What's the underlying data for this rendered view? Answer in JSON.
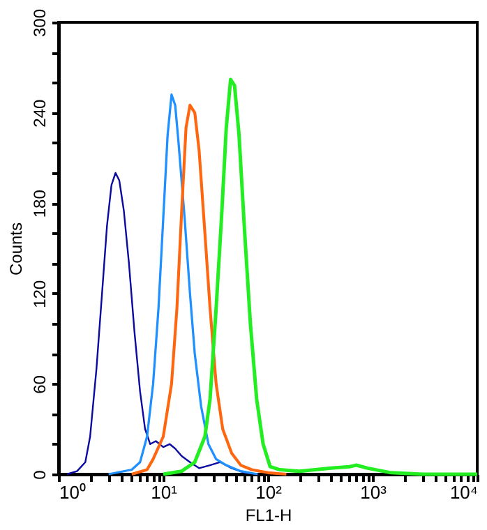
{
  "chart_data": {
    "type": "line",
    "xlabel": "FL1-H",
    "ylabel": "Counts",
    "log": "x",
    "grid": false,
    "legend": false,
    "marker": "none",
    "line_style": "solid",
    "xlim": [
      1,
      10000
    ],
    "ylim": [
      0,
      300
    ],
    "xticks": [
      {
        "value": 1,
        "label": "10⁰"
      },
      {
        "value": 2,
        "label": null
      },
      {
        "value": 3,
        "label": null
      },
      {
        "value": 4,
        "label": null
      },
      {
        "value": 5,
        "label": null
      },
      {
        "value": 6,
        "label": null
      },
      {
        "value": 7,
        "label": null
      },
      {
        "value": 8,
        "label": null
      },
      {
        "value": 9,
        "label": null
      },
      {
        "value": 10,
        "label": "10¹"
      },
      {
        "value": 20,
        "label": null
      },
      {
        "value": 30,
        "label": null
      },
      {
        "value": 40,
        "label": null
      },
      {
        "value": 50,
        "label": null
      },
      {
        "value": 60,
        "label": null
      },
      {
        "value": 70,
        "label": null
      },
      {
        "value": 80,
        "label": null
      },
      {
        "value": 90,
        "label": null
      },
      {
        "value": 100,
        "label": "10²"
      },
      {
        "value": 200,
        "label": null
      },
      {
        "value": 300,
        "label": null
      },
      {
        "value": 400,
        "label": null
      },
      {
        "value": 500,
        "label": null
      },
      {
        "value": 600,
        "label": null
      },
      {
        "value": 700,
        "label": null
      },
      {
        "value": 800,
        "label": null
      },
      {
        "value": 900,
        "label": null
      },
      {
        "value": 1000,
        "label": "10³"
      },
      {
        "value": 2000,
        "label": null
      },
      {
        "value": 3000,
        "label": null
      },
      {
        "value": 4000,
        "label": null
      },
      {
        "value": 5000,
        "label": null
      },
      {
        "value": 6000,
        "label": null
      },
      {
        "value": 7000,
        "label": null
      },
      {
        "value": 8000,
        "label": null
      },
      {
        "value": 9000,
        "label": null
      },
      {
        "value": 10000,
        "label": "10⁴"
      }
    ],
    "yticks": [
      0,
      {
        "value": 20,
        "label": null
      },
      {
        "value": 40,
        "label": null
      },
      60,
      {
        "value": 80,
        "label": null
      },
      {
        "value": 100,
        "label": null
      },
      120,
      {
        "value": 140,
        "label": null
      },
      {
        "value": 160,
        "label": null
      },
      180,
      {
        "value": 200,
        "label": null
      },
      {
        "value": 220,
        "label": null
      },
      240,
      {
        "value": 260,
        "label": null
      },
      {
        "value": 280,
        "label": null
      },
      300
    ],
    "series": [
      {
        "color": "#0a0aa0",
        "x": [
          1.2,
          1.5,
          1.8,
          2.0,
          2.3,
          2.6,
          2.9,
          3.2,
          3.5,
          3.8,
          4.2,
          4.7,
          5.3,
          6.0,
          6.7,
          7.5,
          8.5,
          10,
          11.5,
          13,
          15,
          18,
          22,
          28,
          35,
          45,
          60,
          80
        ],
        "values": [
          0,
          2,
          8,
          25,
          70,
          120,
          165,
          192,
          200,
          195,
          175,
          140,
          95,
          55,
          30,
          20,
          22,
          18,
          20,
          17,
          12,
          8,
          4,
          6,
          8,
          4,
          1,
          0
        ]
      },
      {
        "color": "#1e90ff",
        "x": [
          3,
          5,
          6,
          7,
          8,
          9,
          10,
          11,
          12,
          13,
          14,
          16,
          18,
          20,
          23,
          27,
          32,
          40,
          55,
          80
        ],
        "values": [
          0,
          3,
          8,
          25,
          60,
          110,
          170,
          225,
          252,
          245,
          220,
          170,
          120,
          80,
          45,
          20,
          10,
          6,
          2,
          0
        ]
      },
      {
        "color": "#ff6610",
        "x": [
          5,
          7,
          8,
          10,
          12,
          13.5,
          15,
          16.5,
          18,
          20,
          22,
          25,
          28,
          32,
          37,
          45,
          55,
          70,
          100,
          150
        ],
        "values": [
          0,
          3,
          10,
          25,
          60,
          110,
          175,
          230,
          245,
          240,
          215,
          160,
          110,
          60,
          30,
          14,
          6,
          3,
          1,
          0
        ]
      },
      {
        "color": "#22ee22",
        "x": [
          10,
          15,
          20,
          25,
          28,
          32,
          36,
          40,
          44,
          48,
          53,
          60,
          68,
          78,
          90,
          105,
          130,
          200,
          400,
          600,
          700,
          900,
          1500,
          3000,
          10000
        ],
        "values": [
          0,
          2,
          8,
          25,
          50,
          110,
          170,
          230,
          262,
          258,
          225,
          160,
          100,
          50,
          20,
          5,
          3,
          2,
          4,
          5,
          6,
          4,
          1,
          0,
          0
        ]
      }
    ]
  }
}
